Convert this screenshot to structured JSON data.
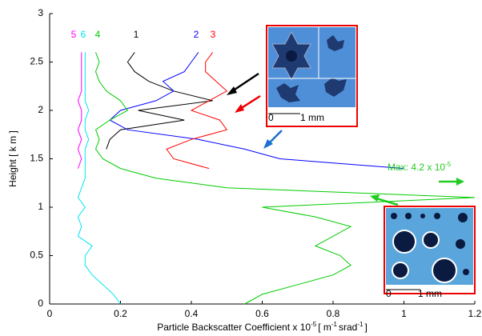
{
  "chart_data": {
    "type": "line",
    "x_label": [
      "Particle Backscatter Coefficient x 10",
      "-5",
      "[ m",
      "-1",
      "srad",
      "-1",
      "]"
    ],
    "y_label": "Height  [ k m ]",
    "y": [
      0,
      0.1,
      0.2,
      0.3,
      0.4,
      0.5,
      0.6,
      0.7,
      0.8,
      0.9,
      1.0,
      1.1,
      1.2,
      1.3,
      1.4,
      1.5,
      1.6,
      1.7,
      1.8,
      1.9,
      2.0,
      2.1,
      2.2,
      2.3,
      2.4,
      2.5,
      2.6
    ],
    "series": [
      {
        "name": "1",
        "color": "#000000",
        "values": [
          null,
          null,
          null,
          null,
          null,
          null,
          null,
          null,
          null,
          null,
          null,
          null,
          null,
          null,
          null,
          null,
          0.16,
          0.17,
          0.2,
          0.38,
          0.25,
          0.46,
          0.35,
          0.28,
          0.24,
          0.22,
          0.24
        ]
      },
      {
        "name": "2",
        "color": "#0000ff",
        "values": [
          null,
          null,
          null,
          null,
          null,
          null,
          null,
          null,
          null,
          null,
          null,
          null,
          null,
          null,
          1.0,
          0.65,
          0.55,
          0.42,
          0.22,
          0.17,
          0.2,
          0.3,
          0.35,
          0.32,
          0.38,
          0.4,
          0.42
        ]
      },
      {
        "name": "3",
        "color": "#ff0000",
        "values": [
          null,
          null,
          null,
          null,
          null,
          null,
          null,
          null,
          null,
          null,
          null,
          null,
          null,
          null,
          0.45,
          0.35,
          0.33,
          0.4,
          0.5,
          0.48,
          0.4,
          0.45,
          0.5,
          0.47,
          0.44,
          0.44,
          0.46
        ]
      },
      {
        "name": "4",
        "color": "#00cc00",
        "values": [
          0.55,
          0.6,
          0.7,
          0.8,
          0.85,
          0.82,
          0.75,
          0.8,
          0.85,
          0.75,
          0.6,
          1.2,
          0.5,
          0.3,
          0.2,
          0.15,
          0.13,
          0.14,
          0.13,
          0.17,
          0.22,
          0.2,
          0.16,
          0.14,
          0.13,
          0.14,
          0.13
        ]
      },
      {
        "name": "5",
        "color": "#ff00ff",
        "values": [
          null,
          null,
          null,
          null,
          null,
          null,
          null,
          null,
          null,
          null,
          null,
          null,
          null,
          null,
          0.08,
          0.09,
          0.08,
          0.09,
          0.08,
          0.09,
          0.09,
          0.08,
          0.09,
          0.09,
          0.09,
          0.09,
          0.09
        ]
      },
      {
        "name": "6",
        "color": "#00e5ee",
        "values": [
          0.2,
          0.18,
          0.15,
          0.12,
          0.1,
          0.1,
          0.12,
          0.08,
          0.09,
          0.08,
          0.1,
          0.08,
          0.09,
          0.1,
          0.1,
          0.1,
          0.1,
          0.11,
          0.1,
          0.1,
          0.11,
          0.1,
          0.1,
          0.1,
          0.1,
          0.1,
          0.1
        ]
      }
    ],
    "xlim": [
      0,
      1.2
    ],
    "xticks": [
      0,
      0.2,
      0.4,
      0.6,
      0.8,
      1,
      1.2
    ],
    "ylim": [
      0,
      3
    ],
    "yticks": [
      0,
      0.5,
      1,
      1.5,
      2,
      2.5,
      3
    ],
    "annotation": [
      "Max: 4.2 x 10",
      "-5"
    ],
    "insets": [
      {
        "scale_start": "0",
        "scale_end": "1 mm"
      },
      {
        "scale_start": "0",
        "scale_end": "1 mm"
      }
    ]
  }
}
